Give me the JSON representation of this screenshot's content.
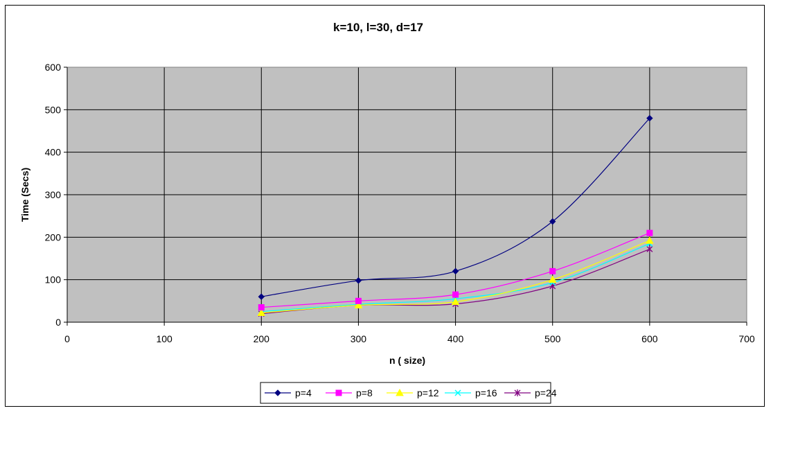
{
  "chart_data": {
    "type": "line",
    "title": "k=10, l=30, d=17",
    "xlabel": "n ( size)",
    "ylabel": "Time (Secs)",
    "xlim": [
      0,
      700
    ],
    "ylim": [
      0,
      600
    ],
    "xticks": [
      0,
      100,
      200,
      300,
      400,
      500,
      600,
      700
    ],
    "yticks": [
      0,
      100,
      200,
      300,
      400,
      500,
      600
    ],
    "grid": true,
    "legend_position": "bottom",
    "plot_background": "#c0c0c0",
    "x": [
      200,
      300,
      400,
      500,
      600
    ],
    "series": [
      {
        "name": "p=4",
        "color": "#000080",
        "marker": "diamond",
        "values": [
          60,
          98,
          120,
          237,
          480
        ]
      },
      {
        "name": "p=8",
        "color": "#ff00ff",
        "marker": "square",
        "values": [
          35,
          50,
          65,
          120,
          210
        ]
      },
      {
        "name": "p=12",
        "color": "#ffff00",
        "marker": "triangle",
        "values": [
          22,
          40,
          48,
          100,
          192
        ]
      },
      {
        "name": "p=16",
        "color": "#00ffff",
        "marker": "x",
        "values": [
          25,
          42,
          55,
          93,
          185
        ]
      },
      {
        "name": "p=24",
        "color": "#800080",
        "marker": "star",
        "values": [
          20,
          40,
          43,
          85,
          172
        ]
      }
    ]
  }
}
